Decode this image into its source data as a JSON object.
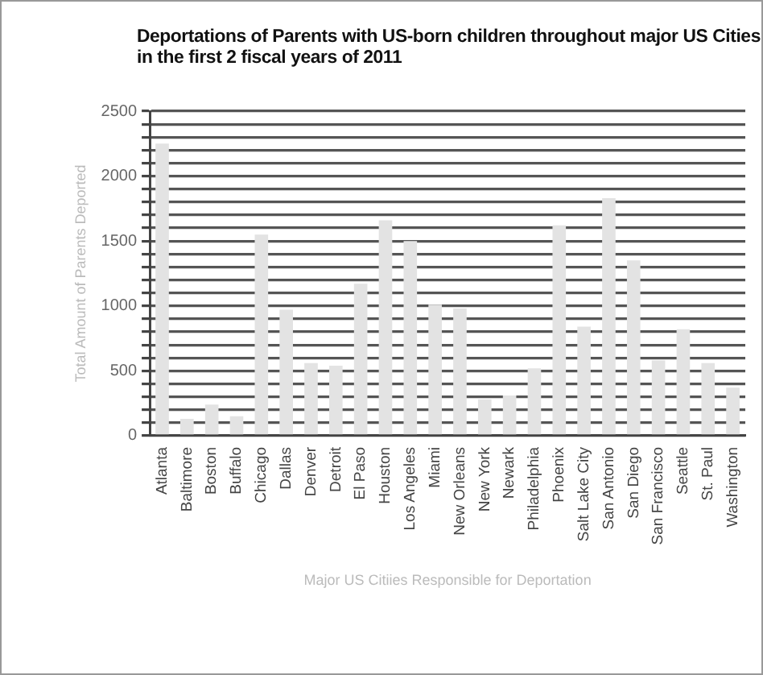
{
  "chart_data": {
    "type": "bar",
    "title": "Deportations of Parents with US-born children throughout major US Cities in the first 2 fiscal years of 2011",
    "xlabel": "Major US Citiies Responsible for Deportation",
    "ylabel": "Total Amount of Parents Deported",
    "categories": [
      "Atlanta",
      "Baltimore",
      "Boston",
      "Buffalo",
      "Chicago",
      "Dallas",
      "Denver",
      "Detroit",
      "El Paso",
      "Houston",
      "Los Angeles",
      "Miami",
      "New Orleans",
      "New York",
      "Newark",
      "Philadelphia",
      "Phoenix",
      "Salt Lake City",
      "San Antonio",
      "San Diego",
      "San Francisco",
      "Seattle",
      "St. Paul",
      "Washington"
    ],
    "values": [
      2250,
      130,
      240,
      150,
      1550,
      970,
      560,
      540,
      1170,
      1660,
      1500,
      1010,
      980,
      280,
      310,
      520,
      1620,
      840,
      1830,
      1350,
      580,
      820,
      560,
      370
    ],
    "color": "#e3e3e3",
    "ylim": [
      0,
      2500
    ],
    "yticks": [
      0,
      {
        "value": 100,
        "label": null
      },
      {
        "value": 200,
        "label": null
      },
      {
        "value": 300,
        "label": null
      },
      {
        "value": 400,
        "label": null
      },
      500,
      {
        "value": 600,
        "label": null
      },
      {
        "value": 700,
        "label": null
      },
      {
        "value": 800,
        "label": null
      },
      {
        "value": 900,
        "label": null
      },
      1000,
      {
        "value": 1100,
        "label": null
      },
      {
        "value": 1200,
        "label": null
      },
      {
        "value": 1300,
        "label": null
      },
      {
        "value": 1400,
        "label": null
      },
      1500,
      {
        "value": 1600,
        "label": null
      },
      {
        "value": 1700,
        "label": null
      },
      {
        "value": 1800,
        "label": null
      },
      {
        "value": 1900,
        "label": null
      },
      2000,
      {
        "value": 2100,
        "label": null
      },
      {
        "value": 2200,
        "label": null
      },
      {
        "value": 2300,
        "label": null
      },
      {
        "value": 2400,
        "label": null
      },
      2500
    ],
    "grid": "y",
    "legend": false
  }
}
